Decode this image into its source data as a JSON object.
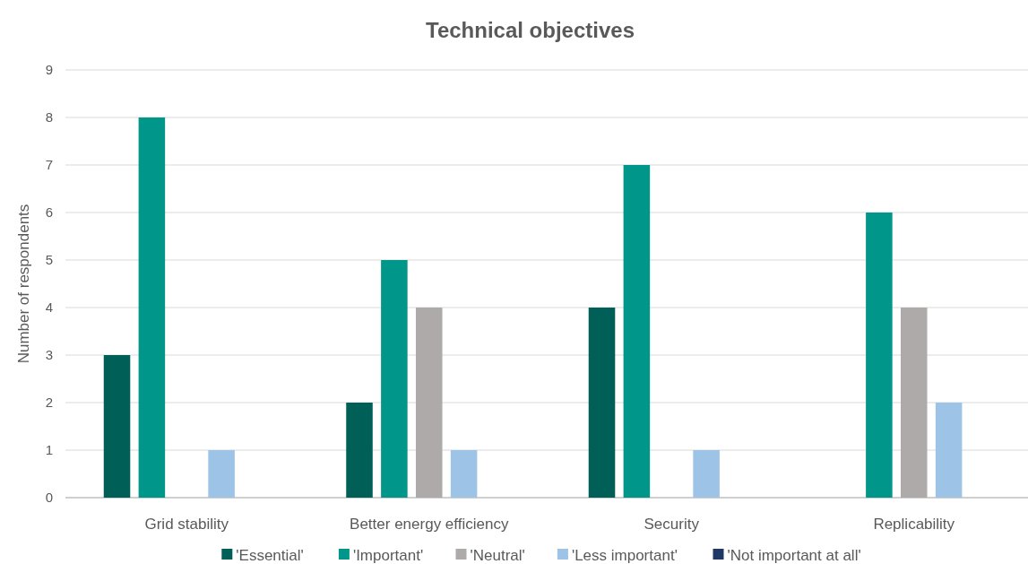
{
  "chart_data": {
    "type": "bar",
    "title": "Technical objectives",
    "ylabel": "Number of respondents",
    "categories": [
      "Grid stability",
      "Better energy efficiency",
      "Security",
      "Replicability"
    ],
    "series": [
      {
        "name": "'Essential'",
        "color": "#005f56",
        "values": [
          3,
          2,
          4,
          0
        ]
      },
      {
        "name": "'Important'",
        "color": "#00968a",
        "values": [
          8,
          5,
          7,
          6
        ]
      },
      {
        "name": "'Neutral'",
        "color": "#aeaaaa",
        "values": [
          0,
          4,
          0,
          4
        ]
      },
      {
        "name": "'Less important'",
        "color": "#9dc3e6",
        "values": [
          1,
          1,
          1,
          2
        ]
      },
      {
        "name": "'Not important at all'",
        "color": "#203864",
        "values": [
          0,
          0,
          0,
          0
        ]
      }
    ],
    "ylim": [
      0,
      9
    ],
    "yticks": [
      0,
      1,
      2,
      3,
      4,
      5,
      6,
      7,
      8,
      9
    ],
    "grid": "y",
    "legend": "bottom"
  }
}
